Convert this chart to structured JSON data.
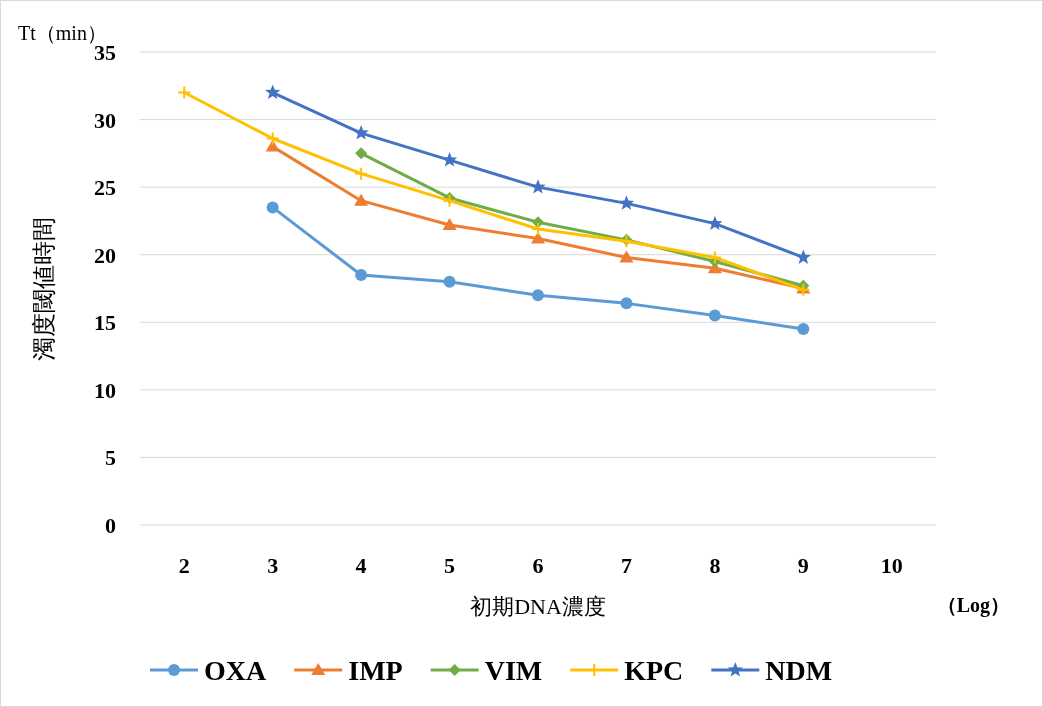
{
  "chart_data": {
    "type": "line",
    "ylabel": "濁度閾値時間",
    "xlabel": "初期DNA濃度",
    "annotations": [
      "Tt（min）",
      "（Log）"
    ],
    "categories": [
      "2",
      "3",
      "4",
      "5",
      "6",
      "7",
      "8",
      "9",
      "10"
    ],
    "ylim": [
      0,
      35
    ],
    "yticks": [
      0,
      5,
      10,
      15,
      20,
      25,
      30,
      35
    ],
    "grid": "y",
    "legend": "bottom",
    "series": [
      {
        "name": "OXA",
        "color": "#5b9bd5",
        "marker": "circle",
        "values": [
          null,
          23.5,
          18.5,
          18.0,
          17.0,
          16.4,
          15.5,
          14.5,
          null
        ]
      },
      {
        "name": "IMP",
        "color": "#ed7d31",
        "marker": "triangle",
        "values": [
          null,
          28.0,
          24.0,
          22.2,
          21.2,
          19.8,
          19.0,
          17.5,
          null
        ]
      },
      {
        "name": "VIM",
        "color": "#70ad47",
        "marker": "diamond",
        "values": [
          null,
          null,
          27.5,
          24.2,
          22.4,
          21.1,
          19.5,
          17.7,
          null
        ]
      },
      {
        "name": "KPC",
        "color": "#ffc000",
        "marker": "cross",
        "values": [
          32.0,
          28.6,
          26.0,
          24.0,
          21.9,
          21.0,
          19.8,
          17.4,
          null
        ]
      },
      {
        "name": "NDM",
        "color": "#4472c4",
        "marker": "star",
        "values": [
          null,
          32.0,
          29.0,
          27.0,
          25.0,
          23.8,
          22.3,
          19.8,
          null
        ]
      }
    ]
  }
}
